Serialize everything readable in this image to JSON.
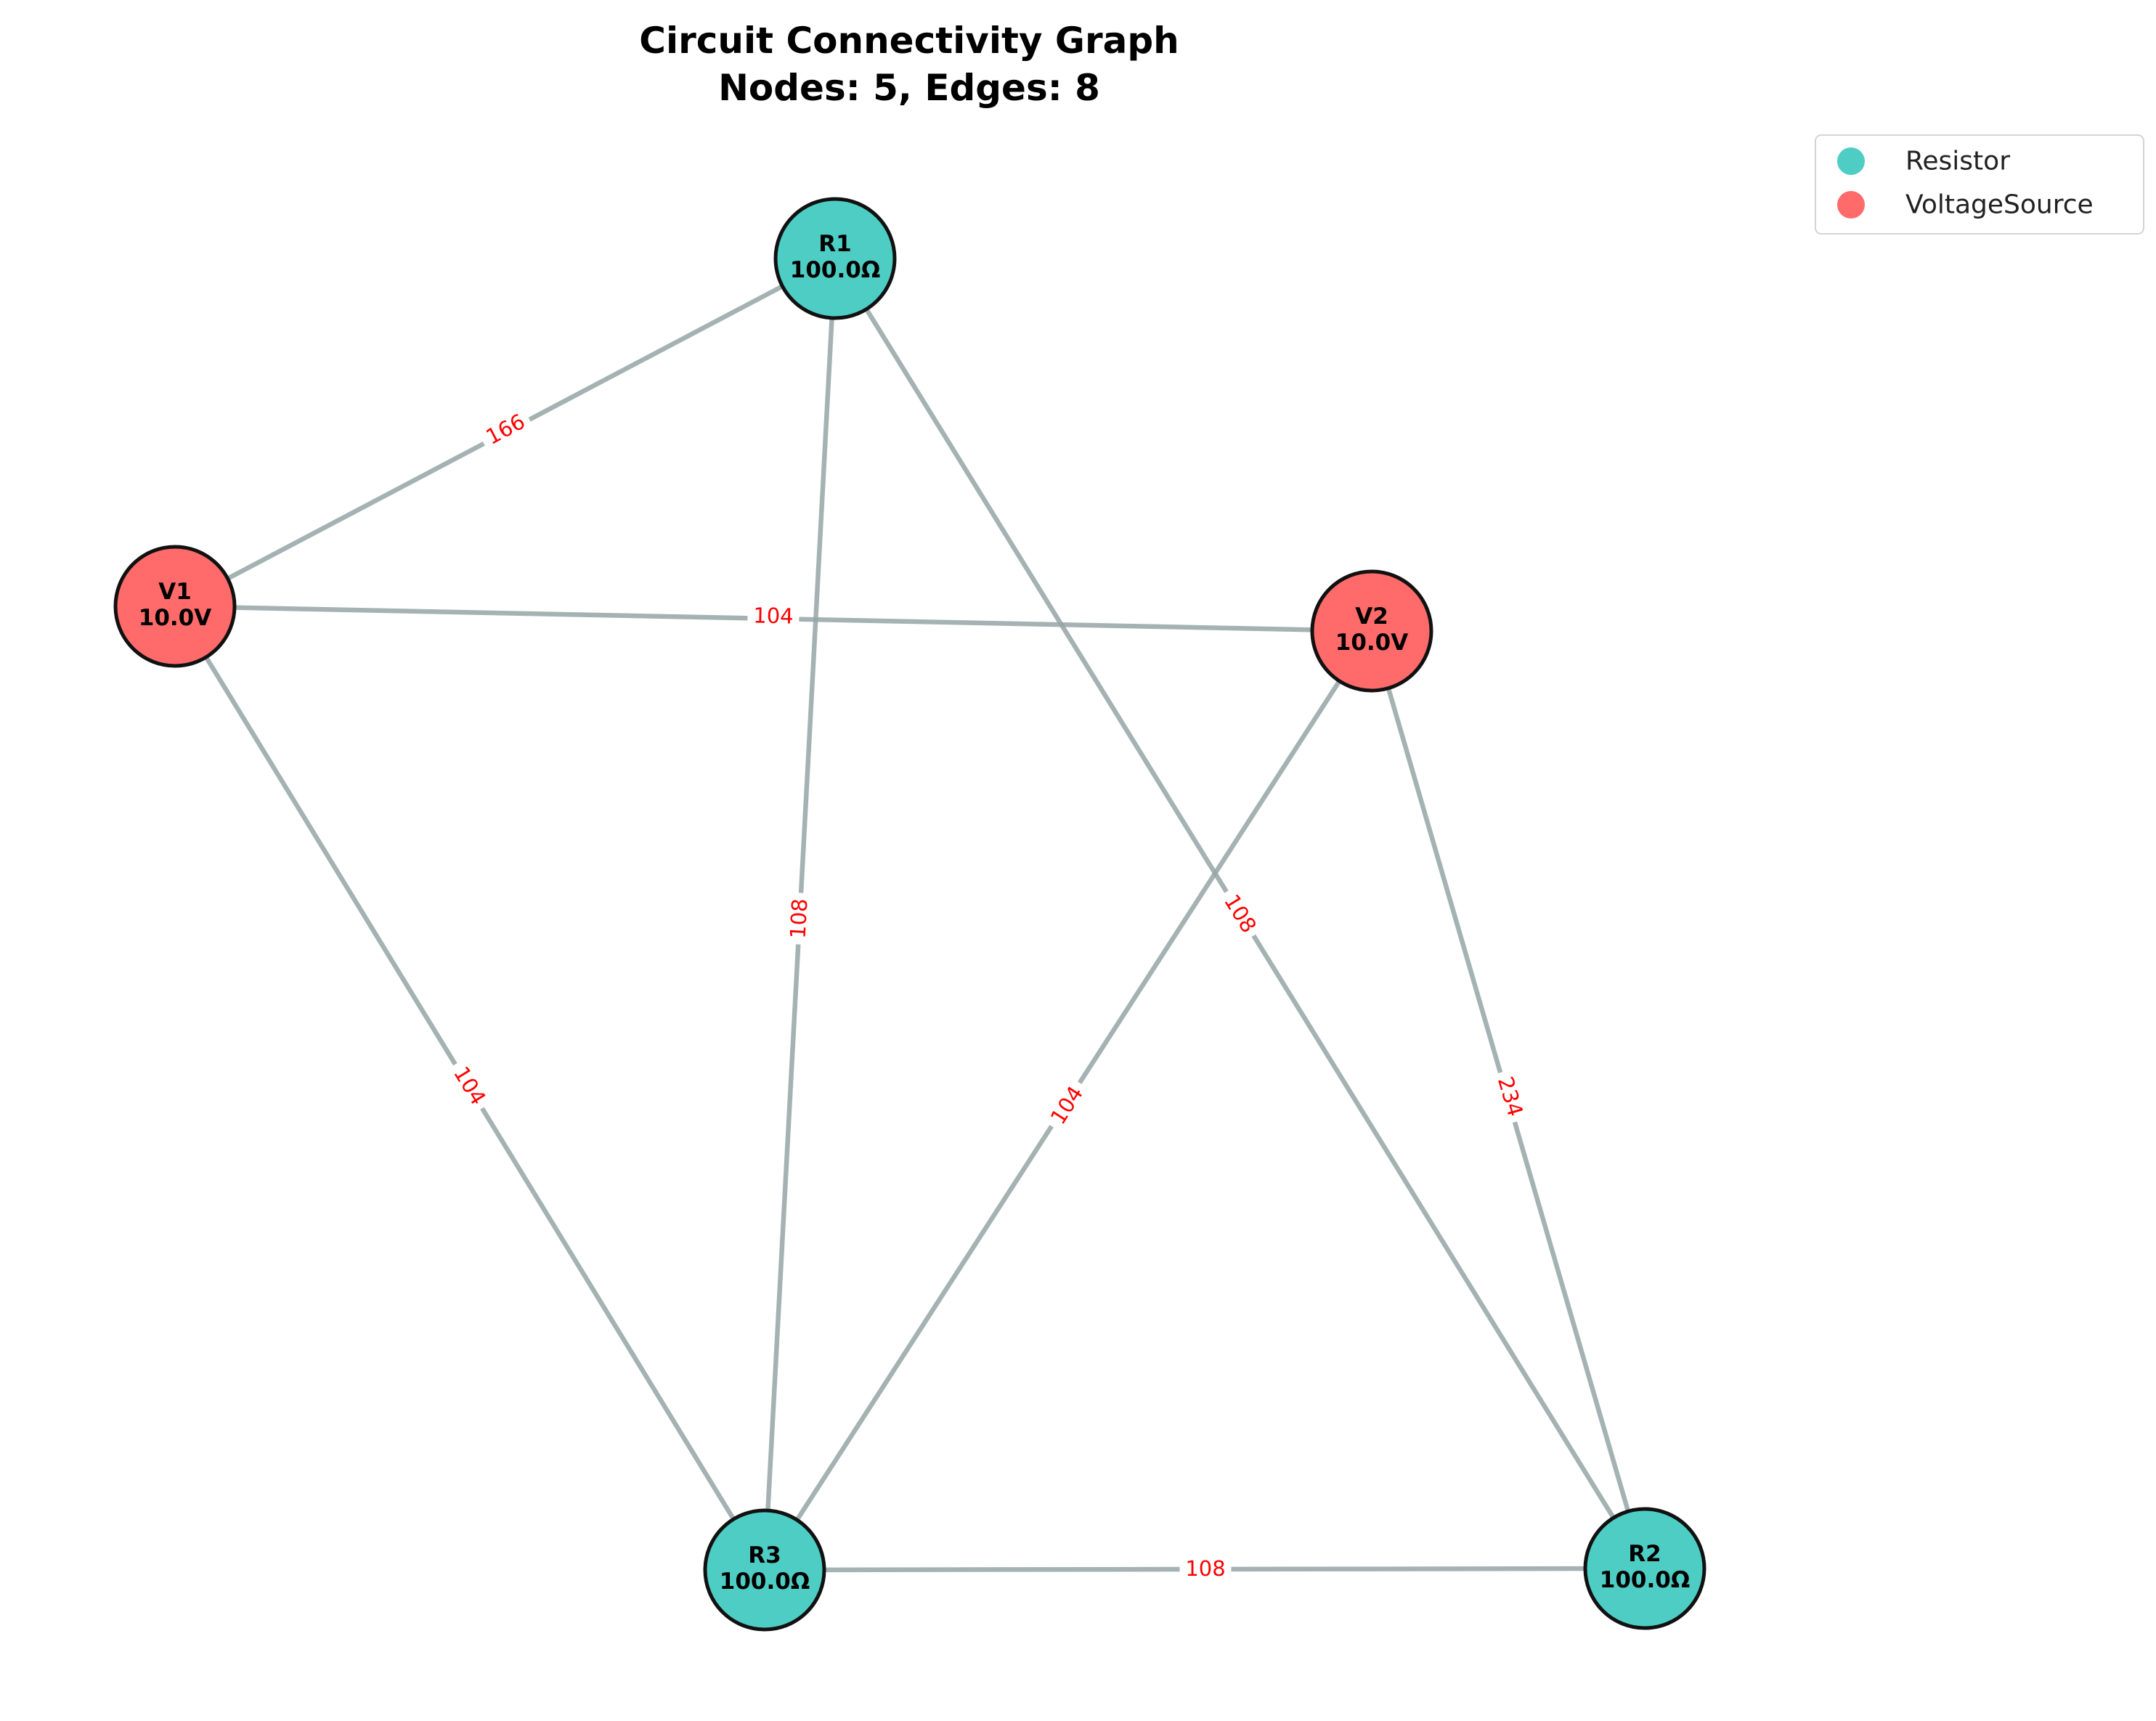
{
  "title_line1": "Circuit Connectivity Graph",
  "title_line2": "Nodes: 5, Edges: 8",
  "colors": {
    "Resistor": "#4ecdc4",
    "VoltageSource": "#ff6b6b",
    "edge": "#95a5a6",
    "edge_label": "#ff0000"
  },
  "legend": [
    {
      "type": "Resistor",
      "label": "Resistor"
    },
    {
      "type": "VoltageSource",
      "label": "VoltageSource"
    }
  ],
  "nodes": [
    {
      "id": "R1",
      "type": "Resistor",
      "name": "R1",
      "value": "100.0Ω"
    },
    {
      "id": "V1",
      "type": "VoltageSource",
      "name": "V1",
      "value": "10.0V"
    },
    {
      "id": "V2",
      "type": "VoltageSource",
      "name": "V2",
      "value": "10.0V"
    },
    {
      "id": "R3",
      "type": "Resistor",
      "name": "R3",
      "value": "100.0Ω"
    },
    {
      "id": "R2",
      "type": "Resistor",
      "name": "R2",
      "value": "100.0Ω"
    }
  ],
  "edges": [
    {
      "source": "R1",
      "target": "V1",
      "label": "166"
    },
    {
      "source": "V1",
      "target": "V2",
      "label": "104"
    },
    {
      "source": "R1",
      "target": "R3",
      "label": "108"
    },
    {
      "source": "R1",
      "target": "R2",
      "label": "108"
    },
    {
      "source": "V1",
      "target": "R3",
      "label": "104"
    },
    {
      "source": "V2",
      "target": "R3",
      "label": "104"
    },
    {
      "source": "V2",
      "target": "R2",
      "label": "234"
    },
    {
      "source": "R3",
      "target": "R2",
      "label": "108"
    }
  ]
}
